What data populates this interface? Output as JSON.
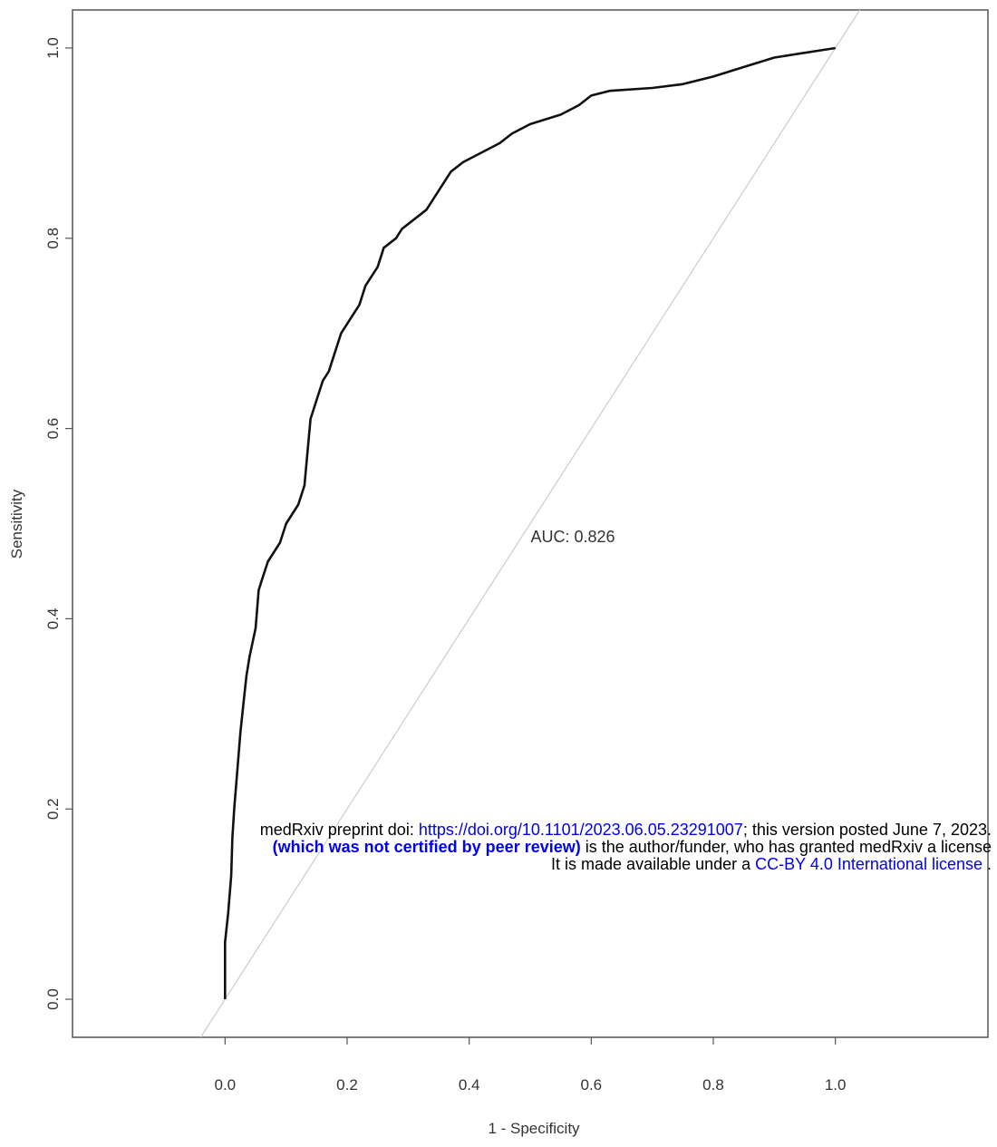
{
  "chart_data": {
    "type": "line",
    "title": "",
    "xlabel": "1 - Specificity",
    "ylabel": "Sensitivity",
    "xlim": [
      -0.25,
      1.25
    ],
    "ylim": [
      -0.04,
      1.04
    ],
    "x_ticks": [
      "0.0",
      "0.2",
      "0.4",
      "0.6",
      "0.8",
      "1.0"
    ],
    "y_ticks": [
      "0.0",
      "0.2",
      "0.4",
      "0.6",
      "0.8",
      "1.0"
    ],
    "annotation": "AUC: 0.826",
    "grid": false,
    "series": [
      {
        "values": [
          [
            0,
            0
          ],
          [
            0,
            0.06
          ],
          [
            0.005,
            0.09
          ],
          [
            0.01,
            0.13
          ],
          [
            0.012,
            0.17
          ],
          [
            0.015,
            0.2
          ],
          [
            0.02,
            0.24
          ],
          [
            0.025,
            0.28
          ],
          [
            0.03,
            0.31
          ],
          [
            0.035,
            0.34
          ],
          [
            0.04,
            0.36
          ],
          [
            0.05,
            0.39
          ],
          [
            0.055,
            0.43
          ],
          [
            0.06,
            0.44
          ],
          [
            0.07,
            0.46
          ],
          [
            0.08,
            0.47
          ],
          [
            0.09,
            0.48
          ],
          [
            0.1,
            0.5
          ],
          [
            0.11,
            0.51
          ],
          [
            0.12,
            0.52
          ],
          [
            0.13,
            0.54
          ],
          [
            0.14,
            0.61
          ],
          [
            0.15,
            0.63
          ],
          [
            0.16,
            0.65
          ],
          [
            0.17,
            0.66
          ],
          [
            0.18,
            0.68
          ],
          [
            0.19,
            0.7
          ],
          [
            0.2,
            0.71
          ],
          [
            0.22,
            0.73
          ],
          [
            0.23,
            0.75
          ],
          [
            0.25,
            0.77
          ],
          [
            0.26,
            0.79
          ],
          [
            0.28,
            0.8
          ],
          [
            0.29,
            0.81
          ],
          [
            0.31,
            0.82
          ],
          [
            0.33,
            0.83
          ],
          [
            0.35,
            0.85
          ],
          [
            0.37,
            0.87
          ],
          [
            0.39,
            0.88
          ],
          [
            0.42,
            0.89
          ],
          [
            0.45,
            0.9
          ],
          [
            0.47,
            0.91
          ],
          [
            0.5,
            0.92
          ],
          [
            0.55,
            0.93
          ],
          [
            0.58,
            0.94
          ],
          [
            0.6,
            0.95
          ],
          [
            0.63,
            0.955
          ],
          [
            0.7,
            0.958
          ],
          [
            0.75,
            0.962
          ],
          [
            0.8,
            0.97
          ],
          [
            0.85,
            0.98
          ],
          [
            0.9,
            0.99
          ],
          [
            0.95,
            0.995
          ],
          [
            1,
            1
          ]
        ]
      },
      {
        "values": [
          [
            -0.04,
            -0.04
          ],
          [
            1.04,
            1.04
          ]
        ]
      }
    ]
  },
  "watermark": {
    "line1_prefix": "medRxiv preprint doi: ",
    "line1_link": "https://doi.org/10.1101/2023.06.05.23291007",
    "line1_suffix": "; this version posted June 7, 2023.",
    "line2_bold": "(which was not certified by peer review)",
    "line2_suffix": " is the author/funder, who has granted medRxiv a license",
    "line3_prefix": "It is made available under a ",
    "line3_link": "CC-BY 4.0 International license",
    "line3_suffix": " ."
  }
}
